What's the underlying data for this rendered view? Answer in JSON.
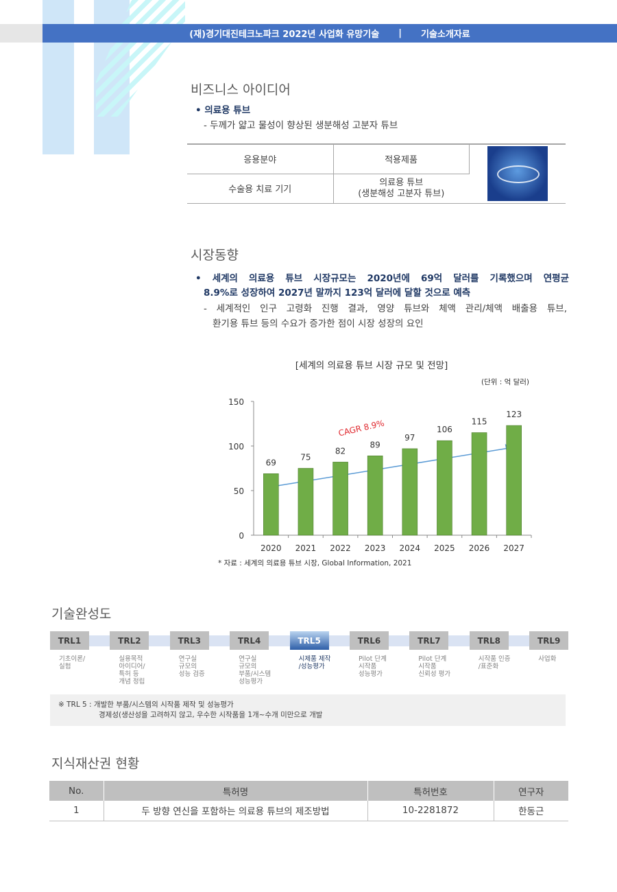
{
  "header": {
    "title": "(재)경기대진테크노파크 2022년 사업화 유망기술",
    "separator": "|",
    "subtitle": "기술소개자료",
    "color": "#4472c4"
  },
  "business": {
    "heading": "비즈니스 아이디어",
    "bullet": "• 의료용 튜브",
    "desc": "- 두께가 얇고 물성이 향상된 생분해성 고분자 튜브",
    "table": {
      "headers": [
        "응용분야",
        "적용제품"
      ],
      "row": [
        "수술용 치료 기기",
        "의료용 튜브\n(생분해성 고분자 튜브)"
      ],
      "image": "medical-tube-photo"
    }
  },
  "market": {
    "heading": "시장동향",
    "bullet_line1": "• 세계의 의료용 튜브 시장규모는 2020년에 69억 달러를 기록했으며 연평균",
    "bullet_line2": "8.9%로 성장하여 2027년 말까지 123억 달러에 달할 것으로 예측",
    "desc_line1": "- 세계적인 인구 고령화 진행 결과, 영양 튜브와 체액 관리/체액 배출용 튜브,",
    "desc_line2": "환기용 튜브 등의 수요가 증가한 점이 시장 성장의 요인"
  },
  "chart_data": {
    "type": "bar",
    "title": "[세계의 의료용 튜브 시장 규모 및 전망]",
    "unit": "(단위 : 억 달러)",
    "categories": [
      "2020",
      "2021",
      "2022",
      "2023",
      "2024",
      "2025",
      "2026",
      "2027"
    ],
    "values": [
      69,
      75,
      82,
      89,
      97,
      106,
      115,
      123
    ],
    "ylim": [
      0,
      150
    ],
    "yticks": [
      "0",
      "50",
      "100",
      "150"
    ],
    "annotation": "CAGR 8.9%",
    "bar_color": "#70ad47",
    "arrow_color": "#5b9bd5",
    "annotation_color": "#e0292f",
    "source": "* 자료 : 세계의 의료용 튜브 시장, Global Information, 2021"
  },
  "trl": {
    "heading": "기술완성도",
    "current": 5,
    "levels": [
      {
        "label": "TRL1",
        "desc": "기초이론/\n실험"
      },
      {
        "label": "TRL2",
        "desc": "실용목적\n아이디어/\n특허 등\n개념 정립"
      },
      {
        "label": "TRL3",
        "desc": "연구실\n규모의\n성능 검증"
      },
      {
        "label": "TRL4",
        "desc": "연구실\n규모의\n부품/시스템\n성능평가"
      },
      {
        "label": "TRL5",
        "desc": "시제품 제작\n/성능평가"
      },
      {
        "label": "TRL6",
        "desc": "Pilot 단계\n시작품\n성능평가"
      },
      {
        "label": "TRL7",
        "desc": "Pilot 단계\n시작품\n신뢰성 평가"
      },
      {
        "label": "TRL8",
        "desc": "시작품 인증\n/표준화"
      },
      {
        "label": "TRL9",
        "desc": "사업화"
      }
    ],
    "note_line1": "※ TRL 5  : 개발한 부품/시스템의 시작품 제작 및 성능평가",
    "note_line2": "경제성(생산성을 고려하지 않고, 우수한 시작품을 1개~수개 미만으로 개발"
  },
  "ip": {
    "heading": "지식재산권 현황",
    "headers": [
      "No.",
      "특허명",
      "특허번호",
      "연구자"
    ],
    "rows": [
      [
        "1",
        "두 방향 연신을 포함하는 의료용 튜브의 제조방법",
        "10-2281872",
        "한동근"
      ]
    ]
  }
}
